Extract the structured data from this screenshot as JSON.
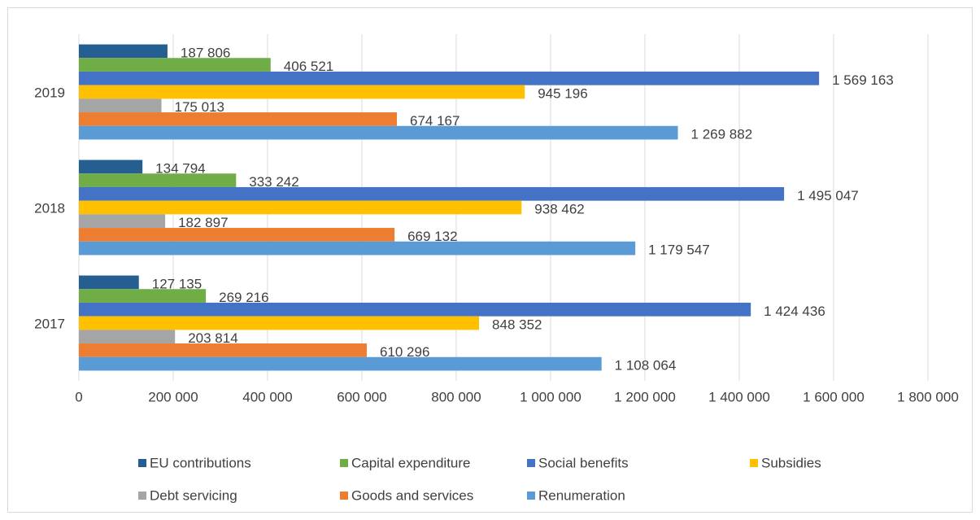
{
  "chart_data": {
    "type": "bar",
    "orientation": "horizontal",
    "categories": [
      "2017",
      "2018",
      "2019"
    ],
    "series": [
      {
        "name": "EU contributions",
        "color": "#255e91",
        "values": [
          127135,
          134794,
          187806
        ],
        "value_labels": [
          "127 135",
          "134 794",
          "187 806"
        ]
      },
      {
        "name": "Capital expenditure",
        "color": "#70ad47",
        "values": [
          269216,
          333242,
          406521
        ],
        "value_labels": [
          "269 216",
          "333 242",
          "406 521"
        ]
      },
      {
        "name": "Social benefits",
        "color": "#4472c4",
        "values": [
          1424436,
          1495047,
          1569163
        ],
        "value_labels": [
          "1 424 436",
          "1 495 047",
          "1 569 163"
        ]
      },
      {
        "name": "Subsidies",
        "color": "#ffc000",
        "values": [
          848352,
          938462,
          945196
        ],
        "value_labels": [
          "848 352",
          "938 462",
          "945 196"
        ]
      },
      {
        "name": "Debt servicing",
        "color": "#a5a5a5",
        "values": [
          203814,
          182897,
          175013
        ],
        "value_labels": [
          "203 814",
          "182 897",
          "175 013"
        ]
      },
      {
        "name": "Goods and services",
        "color": "#ed7d31",
        "values": [
          610296,
          669132,
          674167
        ],
        "value_labels": [
          "610 296",
          "669 132",
          "674 167"
        ]
      },
      {
        "name": "Renumeration",
        "color": "#5b9bd5",
        "values": [
          1108064,
          1179547,
          1269882
        ],
        "value_labels": [
          "1 108 064",
          "1 179 547",
          "1 269 882"
        ]
      }
    ],
    "xlim": [
      0,
      1800000
    ],
    "xticks": [
      0,
      {
        "value": 200000,
        "label": "200 000"
      },
      {
        "value": 400000,
        "label": "400 000"
      },
      {
        "value": 600000,
        "label": "600 000"
      },
      {
        "value": 800000,
        "label": "800 000"
      },
      {
        "value": 1000000,
        "label": "1 000 000"
      },
      {
        "value": 1200000,
        "label": "1 200 000"
      },
      {
        "value": 1400000,
        "label": "1 400 000"
      },
      {
        "value": 1600000,
        "label": "1 600 000"
      },
      {
        "value": 1800000,
        "label": "1 800 000"
      }
    ],
    "grid": true,
    "legend": "bottom"
  }
}
